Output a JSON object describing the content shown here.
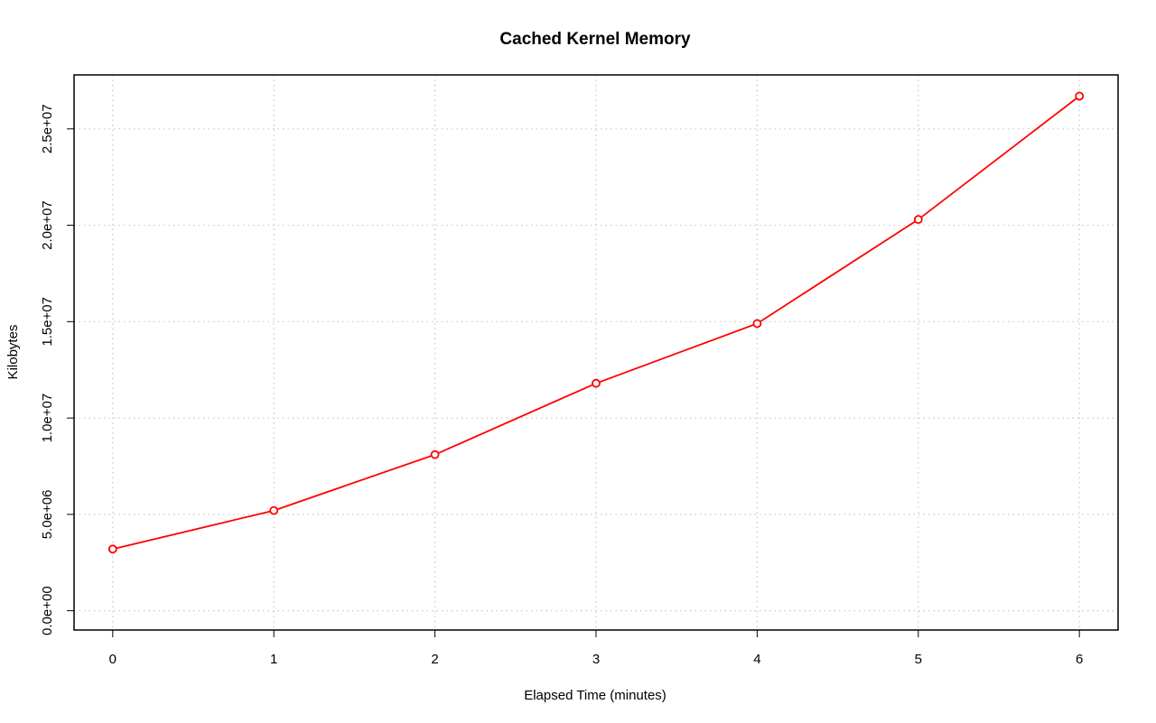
{
  "chart_data": {
    "type": "line",
    "title": "Cached Kernel Memory",
    "xlabel": "Elapsed Time (minutes)",
    "ylabel": "Kilobytes",
    "x": [
      0,
      1,
      2,
      3,
      4,
      5,
      6
    ],
    "series": [
      {
        "values": [
          3200000,
          5200000,
          8100000,
          11800000,
          14900000,
          20300000,
          26700000
        ],
        "color": "#ff0000",
        "marker": "open-circle"
      }
    ],
    "xlim": [
      -0.24,
      6.24
    ],
    "ylim": [
      -1000000,
      27800000
    ],
    "x_ticks": [
      0,
      1,
      2,
      3,
      4,
      5,
      6
    ],
    "x_tick_labels": [
      "0",
      "1",
      "2",
      "3",
      "4",
      "5",
      "6"
    ],
    "y_ticks": [
      0,
      5000000,
      10000000,
      15000000,
      20000000,
      25000000
    ],
    "y_tick_labels": [
      "0.0e+00",
      "5.0e+06",
      "1.0e+07",
      "1.5e+07",
      "2.0e+07",
      "2.5e+07"
    ],
    "grid": true,
    "legend": false
  }
}
